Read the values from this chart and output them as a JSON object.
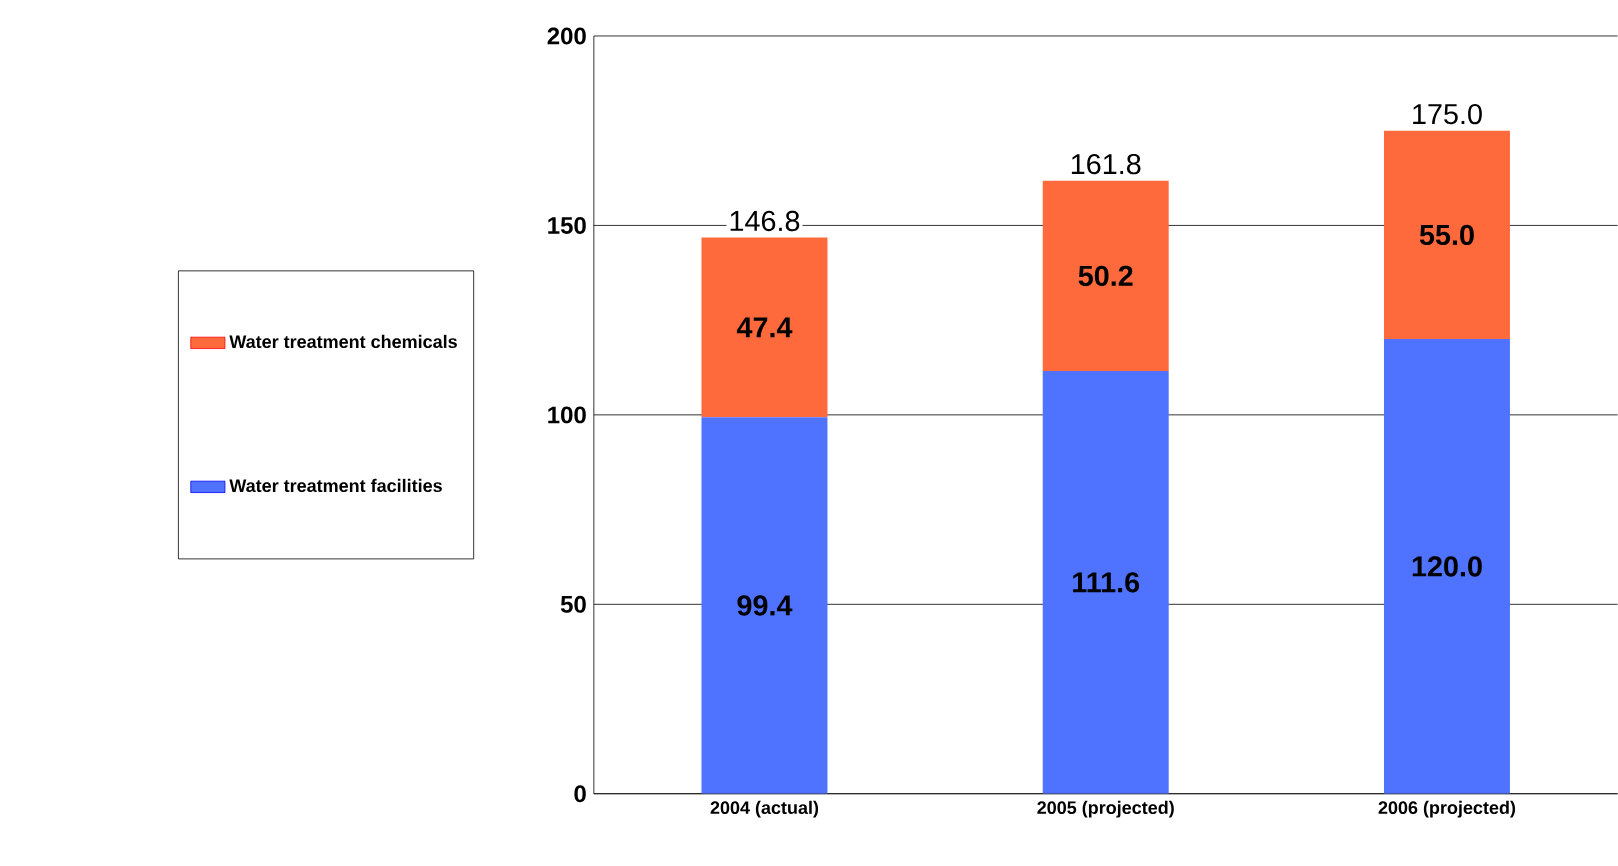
{
  "chart_data": {
    "type": "bar",
    "stacked": true,
    "categories": [
      "2004 (actual)",
      "2005 (projected)",
      "2006 (projected)"
    ],
    "series": [
      {
        "name": "Water treatment facilities",
        "color": "#4f73ff",
        "values": [
          99.4,
          111.6,
          120.0
        ],
        "value_labels": [
          "99.4",
          "111.6",
          "120.0"
        ]
      },
      {
        "name": "Water treatment chemicals",
        "color": "#ff6a3d",
        "values": [
          47.4,
          50.2,
          55.0
        ],
        "value_labels": [
          "47.4",
          "50.2",
          "55.0"
        ]
      }
    ],
    "totals": [
      "146.8",
      "161.8",
      "175.0"
    ],
    "ylim": [
      0,
      200
    ],
    "yticks": [
      0,
      50,
      100,
      150,
      200
    ],
    "grid": "y",
    "legend": "left"
  }
}
